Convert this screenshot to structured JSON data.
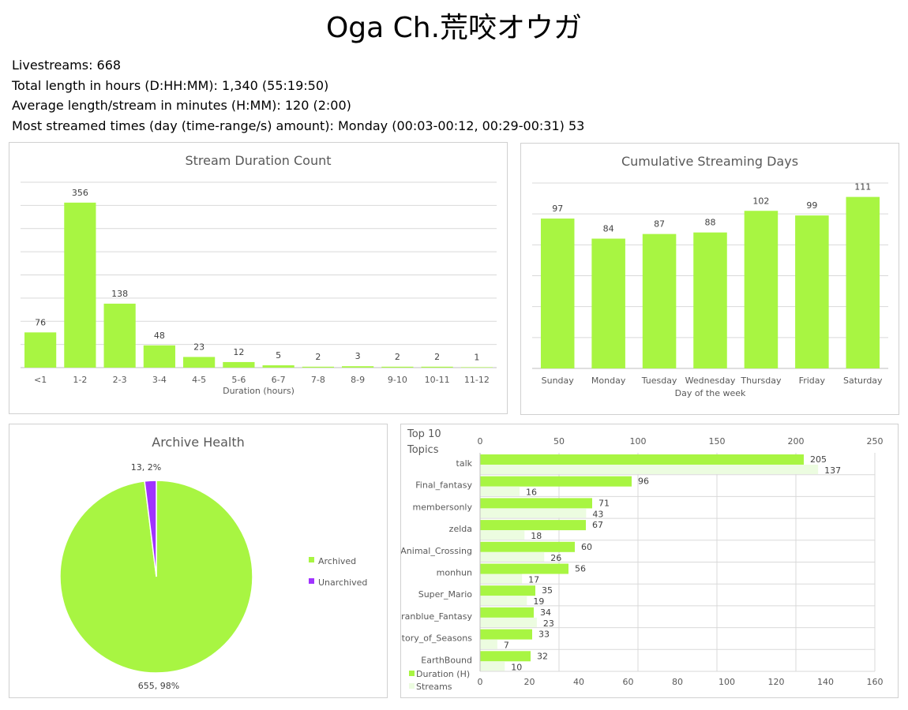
{
  "page": {
    "title": "Oga Ch.荒咬オウガ",
    "stats": [
      "Livestreams: 668",
      "Total length in hours (D:HH:MM): 1,340 (55:19:50)",
      "Average length/stream in minutes (H:MM): 120 (2:00)",
      "Most streamed times (day (time-range/s) amount): Monday (00:03-00:12, 00:29-00:31) 53"
    ]
  },
  "colors": {
    "green": "#a8f542",
    "light_green": "#ecfce0",
    "purple": "#a033ff"
  },
  "chart_data": [
    {
      "type": "bar",
      "title": "Stream Duration Count",
      "xlabel": "Duration (hours)",
      "categories": [
        "<1",
        "1-2",
        "2-3",
        "3-4",
        "4-5",
        "5-6",
        "6-7",
        "7-8",
        "8-9",
        "9-10",
        "10-11",
        "11-12"
      ],
      "values": [
        76,
        356,
        138,
        48,
        23,
        12,
        5,
        2,
        3,
        2,
        2,
        1
      ],
      "ylim": [
        0,
        400
      ],
      "grid": true
    },
    {
      "type": "bar",
      "title": "Cumulative Streaming Days",
      "xlabel": "Day of the week",
      "categories": [
        "Sunday",
        "Monday",
        "Tuesday",
        "Wednesday",
        "Thursday",
        "Friday",
        "Saturday"
      ],
      "values": [
        97,
        84,
        87,
        88,
        102,
        99,
        111
      ],
      "ylim": [
        0,
        120
      ],
      "grid": true
    },
    {
      "type": "pie",
      "title": "Archive Health",
      "categories": [
        "Archived",
        "Unarchived"
      ],
      "values": [
        655,
        13
      ],
      "data_labels": [
        "655, 98%",
        "13, 2%"
      ],
      "legend": "right"
    },
    {
      "type": "bar",
      "orientation": "horizontal",
      "title": "Top 10 Topics",
      "categories": [
        "talk",
        "Final_fantasy",
        "membersonly",
        "zelda",
        "Animal_Crossing",
        "monhun",
        "Super_Mario",
        "Granblue_Fantasy",
        "Story_of_Seasons",
        "EarthBound"
      ],
      "series": [
        {
          "name": "Duration (H)",
          "values": [
            205,
            96,
            71,
            67,
            60,
            56,
            35,
            34,
            33,
            32
          ],
          "axis": "top",
          "axis_range": [
            0,
            250
          ],
          "axis_ticks": [
            0,
            50,
            100,
            150,
            200,
            250
          ]
        },
        {
          "name": "Streams",
          "values": [
            137,
            16,
            43,
            18,
            26,
            17,
            19,
            23,
            7,
            10
          ],
          "axis": "bottom",
          "axis_range": [
            0,
            160
          ],
          "axis_ticks": [
            0,
            20,
            40,
            60,
            80,
            100,
            120,
            140,
            160
          ]
        }
      ],
      "legend": "bottom-left",
      "grid": true
    }
  ]
}
